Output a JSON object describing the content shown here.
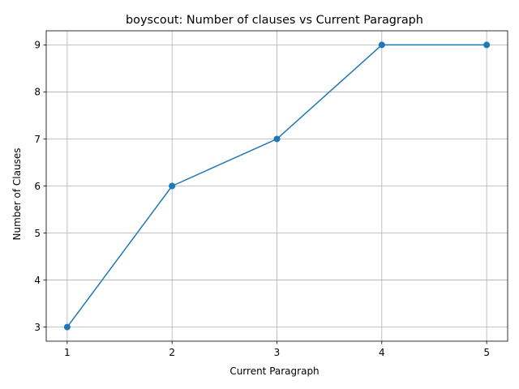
{
  "chart_data": {
    "type": "line",
    "title": "boyscout: Number of clauses vs Current Paragraph",
    "xlabel": "Current Paragraph",
    "ylabel": "Number of Clauses",
    "x": [
      1,
      2,
      3,
      4,
      5
    ],
    "series": [
      {
        "values": [
          3,
          6,
          7,
          9,
          9
        ]
      }
    ],
    "xlim": [
      0.8,
      5.2
    ],
    "ylim": [
      2.7,
      9.3
    ],
    "xticks": [
      1,
      2,
      3,
      4,
      5
    ],
    "yticks": [
      3,
      4,
      5,
      6,
      7,
      8,
      9
    ],
    "grid": true,
    "marker": "circle",
    "colors": {
      "line": "#1f77b4",
      "grid": "#b0b0b0",
      "axes": "#000000"
    }
  }
}
